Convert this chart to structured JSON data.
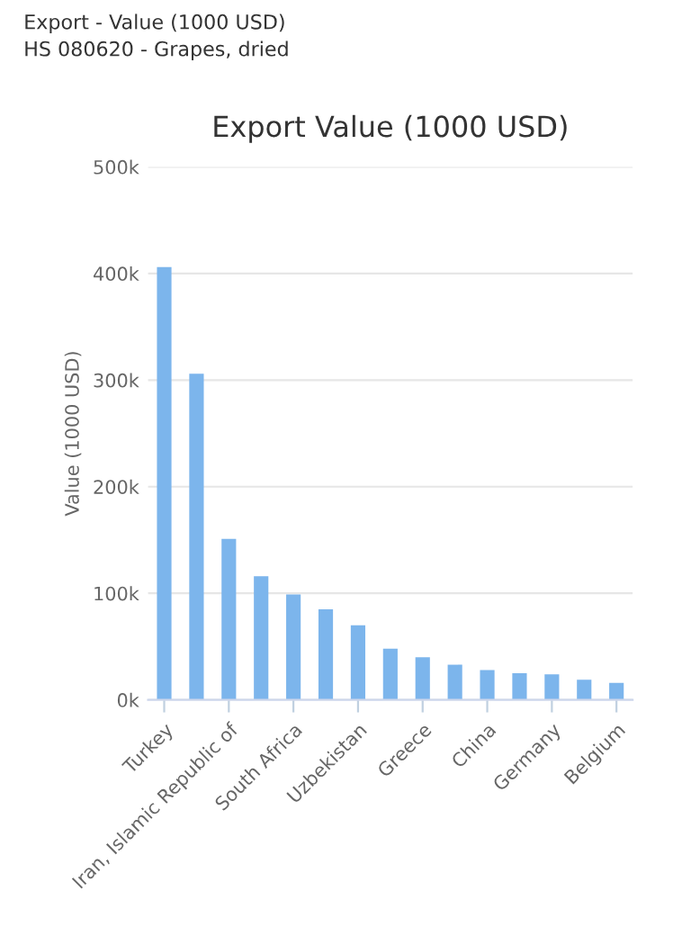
{
  "chart_data": {
    "type": "bar",
    "title": "Export Value (1000 USD)",
    "subtitle": "Export - Value (1000 USD)\nHS 080620 - Grapes, dried",
    "ylabel": "Value (1000 USD)",
    "categories": [
      "Turkey",
      null,
      "Iran, Islamic Republic of",
      null,
      "South Africa",
      null,
      "Uzbekistan",
      null,
      "Greece",
      null,
      "China",
      null,
      "Germany",
      null,
      "Belgium"
    ],
    "values": [
      406,
      306,
      151,
      116,
      99,
      85,
      70,
      48,
      40,
      33,
      28,
      25,
      24,
      19,
      16
    ],
    "color": "#7cb5ec",
    "ylim": [
      0,
      500
    ],
    "yticks": [
      {
        "value": 0,
        "label": "0k"
      },
      {
        "value": 100,
        "label": "100k"
      },
      {
        "value": 200,
        "label": "200k"
      },
      {
        "value": 300,
        "label": "300k"
      },
      {
        "value": 400,
        "label": "400k"
      },
      {
        "value": 500,
        "label": "500k"
      }
    ],
    "grid": "y"
  }
}
